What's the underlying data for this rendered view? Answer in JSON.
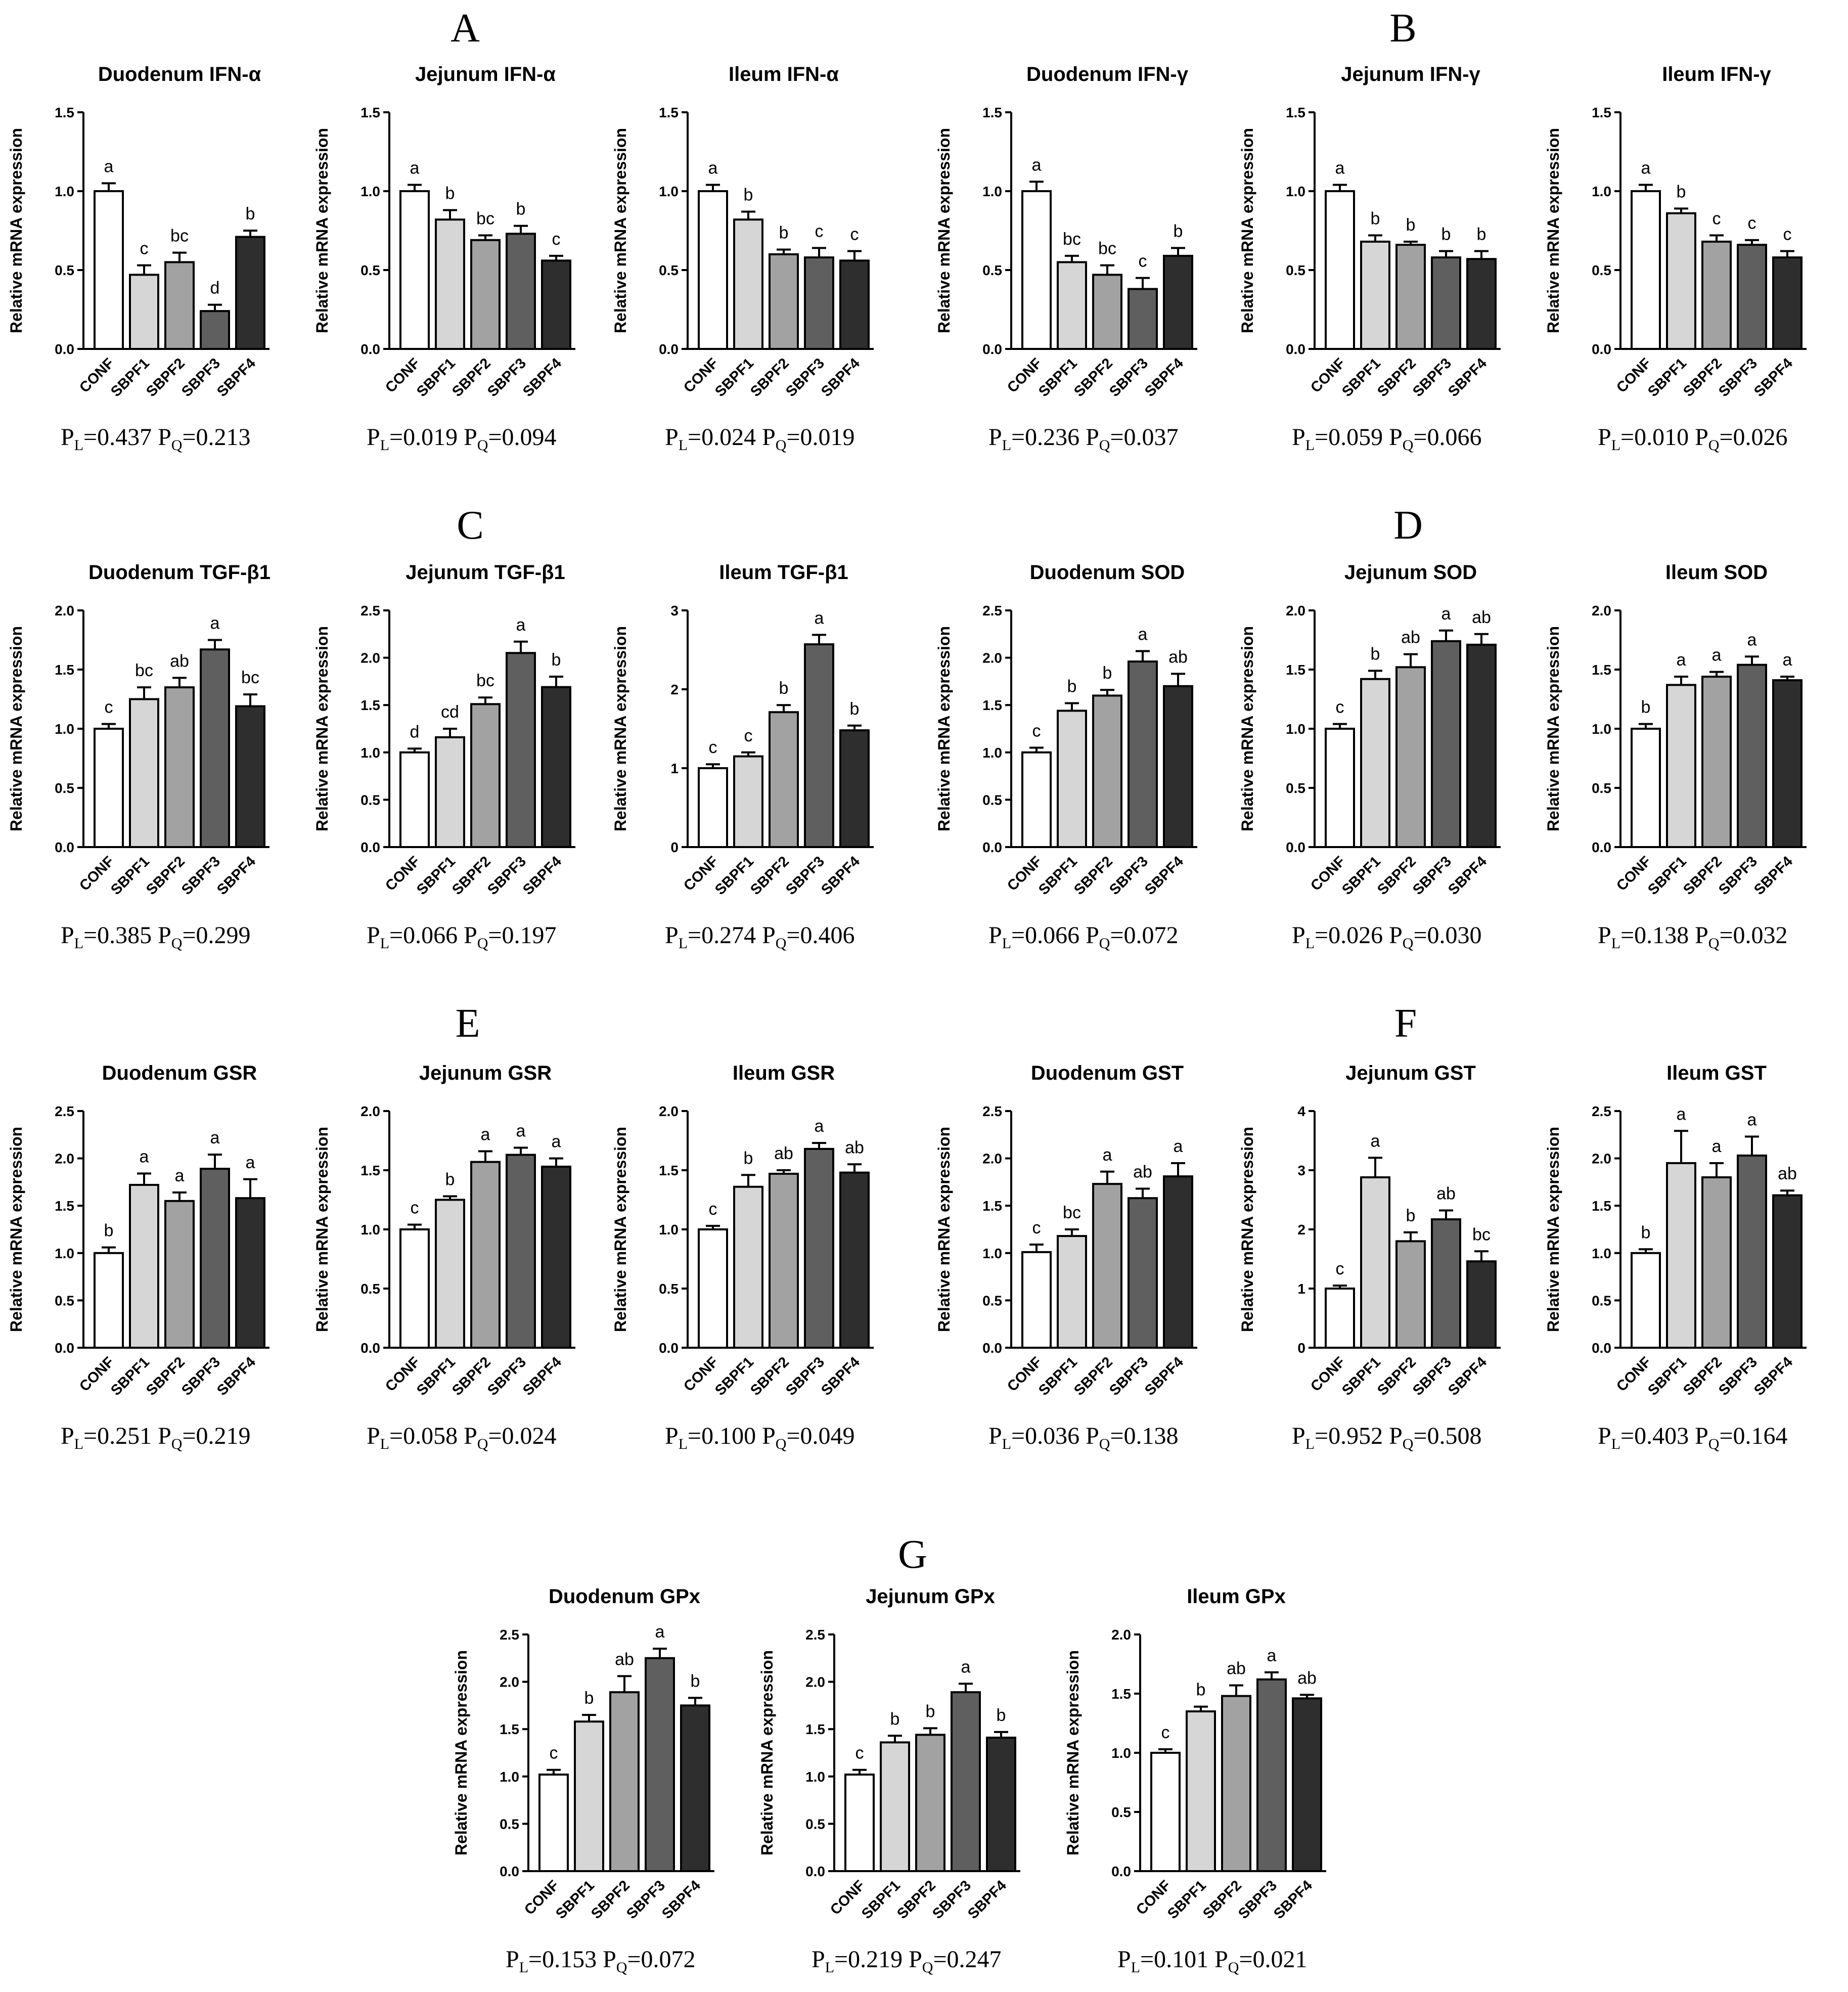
{
  "panel_letters": [
    "A",
    "B",
    "C",
    "D",
    "E",
    "F",
    "G"
  ],
  "y_axis_label": "Relative mRNA expression",
  "group_colors": [
    "#ffffff",
    "#d6d6d6",
    "#a2a2a2",
    "#5f5f5f",
    "#2e2e2e"
  ],
  "chart_data": [
    {
      "type": "bar",
      "title": "Duodenum IFN-α",
      "categories": [
        "CONF",
        "SBPF1",
        "SBPF2",
        "SBPF3",
        "SBPF4"
      ],
      "values": [
        1.0,
        0.47,
        0.55,
        0.24,
        0.71
      ],
      "errors": [
        0.05,
        0.06,
        0.06,
        0.04,
        0.04
      ],
      "letters": [
        "a",
        "c",
        "bc",
        "d",
        "b"
      ],
      "ylim": [
        0,
        1.5
      ],
      "ticks": [
        "0.0",
        "0.5",
        "1.0",
        "1.5"
      ],
      "p_linear": "0.437",
      "p_quadratic": "0.213",
      "ylabel": "Relative mRNA expression"
    },
    {
      "type": "bar",
      "title": "Jejunum IFN-α",
      "categories": [
        "CONF",
        "SBPF1",
        "SBPF2",
        "SBPF3",
        "SBPF4"
      ],
      "values": [
        1.0,
        0.82,
        0.69,
        0.73,
        0.56
      ],
      "errors": [
        0.04,
        0.06,
        0.03,
        0.05,
        0.03
      ],
      "letters": [
        "a",
        "b",
        "bc",
        "b",
        "c"
      ],
      "ylim": [
        0,
        1.5
      ],
      "ticks": [
        "0.0",
        "0.5",
        "1.0",
        "1.5"
      ],
      "p_linear": "0.019",
      "p_quadratic": "0.094",
      "ylabel": "Relative mRNA expression"
    },
    {
      "type": "bar",
      "title": "Ileum IFN-α",
      "categories": [
        "CONF",
        "SBPF1",
        "SBPF2",
        "SBPF3",
        "SBPF4"
      ],
      "values": [
        1.0,
        0.82,
        0.6,
        0.58,
        0.56
      ],
      "errors": [
        0.04,
        0.05,
        0.03,
        0.06,
        0.06
      ],
      "letters": [
        "a",
        "b",
        "b",
        "c",
        "c"
      ],
      "ylim": [
        0,
        1.5
      ],
      "ticks": [
        "0.0",
        "0.5",
        "1.0",
        "1.5"
      ],
      "p_linear": "0.024",
      "p_quadratic": "0.019",
      "ylabel": "Relative mRNA expression"
    },
    {
      "type": "bar",
      "title": "Duodenum IFN-γ",
      "categories": [
        "CONF",
        "SBPF1",
        "SBPF2",
        "SBPF3",
        "SBPF4"
      ],
      "values": [
        1.0,
        0.55,
        0.47,
        0.38,
        0.59
      ],
      "errors": [
        0.06,
        0.04,
        0.06,
        0.07,
        0.05
      ],
      "letters": [
        "a",
        "bc",
        "bc",
        "c",
        "b"
      ],
      "ylim": [
        0,
        1.5
      ],
      "ticks": [
        "0.0",
        "0.5",
        "1.0",
        "1.5"
      ],
      "p_linear": "0.236",
      "p_quadratic": "0.037",
      "ylabel": "Relative mRNA expression"
    },
    {
      "type": "bar",
      "title": "Jejunum IFN-γ",
      "categories": [
        "CONF",
        "SBPF1",
        "SBPF2",
        "SBPF3",
        "SBPF4"
      ],
      "values": [
        1.0,
        0.68,
        0.66,
        0.58,
        0.57
      ],
      "errors": [
        0.04,
        0.04,
        0.02,
        0.04,
        0.05
      ],
      "letters": [
        "a",
        "b",
        "b",
        "b",
        "b"
      ],
      "ylim": [
        0,
        1.5
      ],
      "ticks": [
        "0.0",
        "0.5",
        "1.0",
        "1.5"
      ],
      "p_linear": "0.059",
      "p_quadratic": "0.066",
      "ylabel": "Relative mRNA expression"
    },
    {
      "type": "bar",
      "title": "Ileum IFN-γ",
      "categories": [
        "CONF",
        "SBPF1",
        "SBPF2",
        "SBPF3",
        "SBPF4"
      ],
      "values": [
        1.0,
        0.86,
        0.68,
        0.66,
        0.58
      ],
      "errors": [
        0.04,
        0.03,
        0.04,
        0.03,
        0.04
      ],
      "letters": [
        "a",
        "b",
        "c",
        "c",
        "c"
      ],
      "ylim": [
        0,
        1.5
      ],
      "ticks": [
        "0.0",
        "0.5",
        "1.0",
        "1.5"
      ],
      "p_linear": "0.010",
      "p_quadratic": "0.026",
      "ylabel": "Relative mRNA expression"
    },
    {
      "type": "bar",
      "title": "Duodenum TGF-β1",
      "categories": [
        "CONF",
        "SBPF1",
        "SBPF2",
        "SBPF3",
        "SBPF4"
      ],
      "values": [
        1.0,
        1.25,
        1.35,
        1.67,
        1.19
      ],
      "errors": [
        0.04,
        0.1,
        0.08,
        0.08,
        0.1
      ],
      "letters": [
        "c",
        "bc",
        "ab",
        "a",
        "bc"
      ],
      "ylim": [
        0,
        2.0
      ],
      "ticks": [
        "0.0",
        "0.5",
        "1.0",
        "1.5",
        "2.0"
      ],
      "p_linear": "0.385",
      "p_quadratic": "0.299",
      "ylabel": "Relative mRNA expression"
    },
    {
      "type": "bar",
      "title": "Jejunum TGF-β1",
      "categories": [
        "CONF",
        "SBPF1",
        "SBPF2",
        "SBPF3",
        "SBPF4"
      ],
      "values": [
        1.0,
        1.16,
        1.51,
        2.05,
        1.69
      ],
      "errors": [
        0.04,
        0.09,
        0.07,
        0.12,
        0.11
      ],
      "letters": [
        "d",
        "cd",
        "bc",
        "a",
        "b"
      ],
      "ylim": [
        0,
        2.5
      ],
      "ticks": [
        "0.0",
        "0.5",
        "1.0",
        "1.5",
        "2.0",
        "2.5"
      ],
      "p_linear": "0.066",
      "p_quadratic": "0.197",
      "ylabel": "Relative mRNA expression"
    },
    {
      "type": "bar",
      "title": "Ileum TGF-β1",
      "categories": [
        "CONF",
        "SBPF1",
        "SBPF2",
        "SBPF3",
        "SBPF4"
      ],
      "values": [
        1.0,
        1.15,
        1.71,
        2.57,
        1.48
      ],
      "errors": [
        0.05,
        0.05,
        0.09,
        0.12,
        0.06
      ],
      "letters": [
        "c",
        "c",
        "b",
        "a",
        "b"
      ],
      "ylim": [
        0,
        3
      ],
      "ticks": [
        "0",
        "1",
        "2",
        "3"
      ],
      "p_linear": "0.274",
      "p_quadratic": "0.406",
      "ylabel": "Relative mRNA expression"
    },
    {
      "type": "bar",
      "title": "Duodenum SOD",
      "categories": [
        "CONF",
        "SBPF1",
        "SBPF2",
        "SBPF3",
        "SBPF4"
      ],
      "values": [
        1.0,
        1.44,
        1.6,
        1.96,
        1.7
      ],
      "errors": [
        0.05,
        0.08,
        0.06,
        0.11,
        0.13
      ],
      "letters": [
        "c",
        "b",
        "b",
        "a",
        "ab"
      ],
      "ylim": [
        0,
        2.5
      ],
      "ticks": [
        "0.0",
        "0.5",
        "1.0",
        "1.5",
        "2.0",
        "2.5"
      ],
      "p_linear": "0.066",
      "p_quadratic": "0.072",
      "ylabel": "Relative mRNA expression"
    },
    {
      "type": "bar",
      "title": "Jejunum SOD",
      "categories": [
        "CONF",
        "SBPF1",
        "SBPF2",
        "SBPF3",
        "SBPF4"
      ],
      "values": [
        1.0,
        1.42,
        1.52,
        1.74,
        1.71
      ],
      "errors": [
        0.04,
        0.07,
        0.11,
        0.09,
        0.09
      ],
      "letters": [
        "c",
        "b",
        "ab",
        "a",
        "ab"
      ],
      "ylim": [
        0,
        2.0
      ],
      "ticks": [
        "0.0",
        "0.5",
        "1.0",
        "1.5",
        "2.0"
      ],
      "p_linear": "0.026",
      "p_quadratic": "0.030",
      "ylabel": "Relative mRNA expression"
    },
    {
      "type": "bar",
      "title": "Ileum SOD",
      "categories": [
        "CONF",
        "SBPF1",
        "SBPF2",
        "SBPF3",
        "SBPF4"
      ],
      "values": [
        1.0,
        1.37,
        1.44,
        1.54,
        1.41
      ],
      "errors": [
        0.04,
        0.07,
        0.04,
        0.07,
        0.03
      ],
      "letters": [
        "b",
        "a",
        "a",
        "a",
        "a"
      ],
      "ylim": [
        0,
        2.0
      ],
      "ticks": [
        "0.0",
        "0.5",
        "1.0",
        "1.5",
        "2.0"
      ],
      "p_linear": "0.138",
      "p_quadratic": "0.032",
      "ylabel": "Relative mRNA expression"
    },
    {
      "type": "bar",
      "title": "Duodenum GSR",
      "categories": [
        "CONF",
        "SBPF1",
        "SBPF2",
        "SBPF3",
        "SBPF4"
      ],
      "values": [
        1.0,
        1.72,
        1.55,
        1.89,
        1.58
      ],
      "errors": [
        0.06,
        0.12,
        0.09,
        0.15,
        0.2
      ],
      "letters": [
        "b",
        "a",
        "a",
        "a",
        "a"
      ],
      "ylim": [
        0,
        2.5
      ],
      "ticks": [
        "0.0",
        "0.5",
        "1.0",
        "1.5",
        "2.0",
        "2.5"
      ],
      "p_linear": "0.251",
      "p_quadratic": "0.219",
      "ylabel": "Relative mRNA expression"
    },
    {
      "type": "bar",
      "title": "Jejunum GSR",
      "categories": [
        "CONF",
        "SBPF1",
        "SBPF2",
        "SBPF3",
        "SBPF4"
      ],
      "values": [
        1.0,
        1.25,
        1.57,
        1.63,
        1.53
      ],
      "errors": [
        0.04,
        0.03,
        0.09,
        0.06,
        0.07
      ],
      "letters": [
        "c",
        "b",
        "a",
        "a",
        "a"
      ],
      "ylim": [
        0,
        2.0
      ],
      "ticks": [
        "0.0",
        "0.5",
        "1.0",
        "1.5",
        "2.0"
      ],
      "p_linear": "0.058",
      "p_quadratic": "0.024",
      "ylabel": "Relative mRNA expression"
    },
    {
      "type": "bar",
      "title": "Ileum GSR",
      "categories": [
        "CONF",
        "SBPF1",
        "SBPF2",
        "SBPF3",
        "SBPF4"
      ],
      "values": [
        1.0,
        1.36,
        1.47,
        1.68,
        1.48
      ],
      "errors": [
        0.03,
        0.1,
        0.03,
        0.05,
        0.07
      ],
      "letters": [
        "c",
        "b",
        "ab",
        "a",
        "ab"
      ],
      "ylim": [
        0,
        2.0
      ],
      "ticks": [
        "0.0",
        "0.5",
        "1.0",
        "1.5",
        "2.0"
      ],
      "p_linear": "0.100",
      "p_quadratic": "0.049",
      "ylabel": "Relative mRNA expression"
    },
    {
      "type": "bar",
      "title": "Duodenum GST",
      "categories": [
        "CONF",
        "SBPF1",
        "SBPF2",
        "SBPF3",
        "SBPF4"
      ],
      "values": [
        1.01,
        1.18,
        1.73,
        1.58,
        1.81
      ],
      "errors": [
        0.08,
        0.07,
        0.13,
        0.1,
        0.14
      ],
      "letters": [
        "c",
        "bc",
        "a",
        "ab",
        "a"
      ],
      "ylim": [
        0,
        2.5
      ],
      "ticks": [
        "0.0",
        "0.5",
        "1.0",
        "1.5",
        "2.0",
        "2.5"
      ],
      "p_linear": "0.036",
      "p_quadratic": "0.138",
      "ylabel": "Relative mRNA expression"
    },
    {
      "type": "bar",
      "title": "Jejunum GST",
      "categories": [
        "CONF",
        "SBPF1",
        "SBPF2",
        "SBPF3",
        "SBPF4"
      ],
      "values": [
        1.0,
        2.88,
        1.8,
        2.17,
        1.46
      ],
      "errors": [
        0.05,
        0.33,
        0.15,
        0.15,
        0.17
      ],
      "letters": [
        "c",
        "a",
        "b",
        "ab",
        "bc"
      ],
      "ylim": [
        0,
        4
      ],
      "ticks": [
        "0",
        "1",
        "2",
        "3",
        "4"
      ],
      "p_linear": "0.952",
      "p_quadratic": "0.508",
      "ylabel": "Relative mRNA expression"
    },
    {
      "type": "bar",
      "title": "Ileum GST",
      "categories": [
        "CONF",
        "SBPF1",
        "SBPF2",
        "SBPF3",
        "SBPF4"
      ],
      "values": [
        1.0,
        1.95,
        1.8,
        2.03,
        1.61
      ],
      "errors": [
        0.04,
        0.34,
        0.15,
        0.2,
        0.05
      ],
      "letters": [
        "b",
        "a",
        "a",
        "a",
        "ab"
      ],
      "ylim": [
        0,
        2.5
      ],
      "ticks": [
        "0.0",
        "0.5",
        "1.0",
        "1.5",
        "2.0",
        "2.5"
      ],
      "p_linear": "0.403",
      "p_quadratic": "0.164",
      "ylabel": "Relative mRNA expression"
    },
    {
      "type": "bar",
      "title": "Duodenum GPx",
      "categories": [
        "CONF",
        "SBPF1",
        "SBPF2",
        "SBPF3",
        "SBPF4"
      ],
      "values": [
        1.02,
        1.58,
        1.89,
        2.25,
        1.75
      ],
      "errors": [
        0.05,
        0.07,
        0.17,
        0.1,
        0.08
      ],
      "letters": [
        "c",
        "b",
        "ab",
        "a",
        "b"
      ],
      "ylim": [
        0,
        2.5
      ],
      "ticks": [
        "0.0",
        "0.5",
        "1.0",
        "1.5",
        "2.0",
        "2.5"
      ],
      "p_linear": "0.153",
      "p_quadratic": "0.072",
      "ylabel": "Relative mRNA expression"
    },
    {
      "type": "bar",
      "title": "Jejunum GPx",
      "categories": [
        "CONF",
        "SBPF1",
        "SBPF2",
        "SBPF3",
        "SBPF4"
      ],
      "values": [
        1.02,
        1.36,
        1.44,
        1.89,
        1.41
      ],
      "errors": [
        0.05,
        0.07,
        0.07,
        0.09,
        0.06
      ],
      "letters": [
        "c",
        "b",
        "b",
        "a",
        "b"
      ],
      "ylim": [
        0,
        2.5
      ],
      "ticks": [
        "0.0",
        "0.5",
        "1.0",
        "1.5",
        "2.0",
        "2.5"
      ],
      "p_linear": "0.219",
      "p_quadratic": "0.247",
      "ylabel": "Relative mRNA expression"
    },
    {
      "type": "bar",
      "title": "Ileum GPx",
      "categories": [
        "CONF",
        "SBPF1",
        "SBPF2",
        "SBPF3",
        "SBPF4"
      ],
      "values": [
        1.0,
        1.35,
        1.48,
        1.62,
        1.46
      ],
      "errors": [
        0.03,
        0.04,
        0.09,
        0.06,
        0.03
      ],
      "letters": [
        "c",
        "b",
        "ab",
        "a",
        "ab"
      ],
      "ylim": [
        0,
        2.0
      ],
      "ticks": [
        "0.0",
        "0.5",
        "1.0",
        "1.5",
        "2.0"
      ],
      "p_linear": "0.101",
      "p_quadratic": "0.021",
      "ylabel": "Relative mRNA expression"
    }
  ]
}
